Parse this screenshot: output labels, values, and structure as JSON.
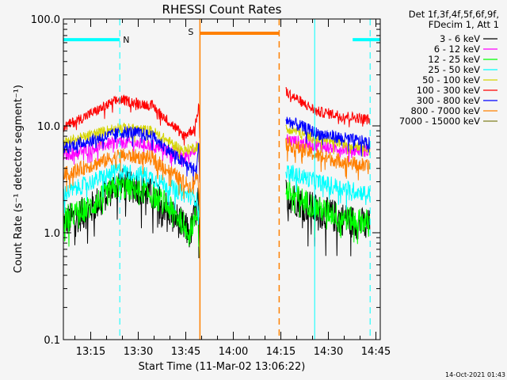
{
  "chart_data": {
    "type": "line",
    "title": "RHESSI Count Rates",
    "xlabel": "Start Time (11-Mar-02 13:06:22)",
    "ylabel": "Count Rate (s⁻¹ detector segment⁻¹)",
    "x_units": "minutes since 13:06:22",
    "xlim": [
      0,
      100
    ],
    "ylim": [
      0.1,
      100
    ],
    "yscale": "log",
    "x_ticks": [
      {
        "t": 8.63,
        "label": "13:15"
      },
      {
        "t": 23.63,
        "label": "13:30"
      },
      {
        "t": 38.63,
        "label": "13:45"
      },
      {
        "t": 53.63,
        "label": "14:00"
      },
      {
        "t": 68.63,
        "label": "14:15"
      },
      {
        "t": 83.63,
        "label": "14:30"
      },
      {
        "t": 98.63,
        "label": "14:45"
      }
    ],
    "y_ticks": [
      {
        "v": 100,
        "label": "100.0"
      },
      {
        "v": 10,
        "label": "10.0"
      },
      {
        "v": 1,
        "label": "1.0"
      },
      {
        "v": 0.1,
        "label": "0.1"
      }
    ],
    "legend": {
      "placement": "right",
      "header": [
        "Det 1f,3f,4f,5f,6f,9f,",
        "FDecim 1, Att 1"
      ]
    },
    "series": [
      {
        "name": "3 - 6 keV",
        "color": "#000000",
        "noise": 0.16,
        "segments": [
          [
            [
              0,
              1.25
            ],
            [
              8,
              1.6
            ],
            [
              17,
              2.9
            ],
            [
              25,
              2.6
            ],
            [
              32,
              1.8
            ],
            [
              40,
              0.97
            ],
            [
              42.5,
              1.9
            ],
            [
              43,
              0.8
            ]
          ],
          [
            [
              70.2,
              2.3
            ],
            [
              80,
              1.6
            ],
            [
              90,
              1.3
            ],
            [
              96.7,
              1.15
            ]
          ]
        ]
      },
      {
        "name": "6 - 12 keV",
        "color": "#ff00ff",
        "noise": 0.06,
        "segments": [
          [
            [
              0,
              5.3
            ],
            [
              17,
              7.1
            ],
            [
              28,
              6.6
            ],
            [
              38,
              5.2
            ],
            [
              42.5,
              6.5
            ],
            [
              43,
              4
            ]
          ],
          [
            [
              70.2,
              7.5
            ],
            [
              80,
              6.5
            ],
            [
              96.7,
              5.8
            ]
          ]
        ]
      },
      {
        "name": "12 - 25 keV",
        "color": "#00ff00",
        "noise": 0.12,
        "segments": [
          [
            [
              0,
              1.36
            ],
            [
              8,
              1.7
            ],
            [
              17,
              2.7
            ],
            [
              25,
              2.5
            ],
            [
              32,
              1.9
            ],
            [
              40,
              1.05
            ],
            [
              42.5,
              1.6
            ],
            [
              43,
              0.5
            ]
          ],
          [
            [
              70.2,
              2.5
            ],
            [
              80,
              1.7
            ],
            [
              90,
              1.35
            ],
            [
              96.7,
              1.25
            ]
          ]
        ]
      },
      {
        "name": "25 - 50 keV",
        "color": "#00ffff",
        "noise": 0.08,
        "segments": [
          [
            [
              0,
              2.3
            ],
            [
              17,
              3.8
            ],
            [
              26,
              3.5
            ],
            [
              38,
              2.3
            ],
            [
              42,
              2.1
            ],
            [
              43,
              1.5
            ]
          ],
          [
            [
              70.2,
              3.8
            ],
            [
              80,
              3.0
            ],
            [
              96.7,
              2.3
            ]
          ]
        ]
      },
      {
        "name": "50 - 100 keV",
        "color": "#d4d400",
        "noise": 0.05,
        "segments": [
          [
            [
              0,
              6.9
            ],
            [
              17,
              9.7
            ],
            [
              28,
              9.0
            ],
            [
              38,
              5.8
            ],
            [
              42.5,
              6.5
            ],
            [
              43,
              4
            ]
          ],
          [
            [
              70.2,
              9.7
            ],
            [
              80,
              7.5
            ],
            [
              96.7,
              6.3
            ]
          ]
        ]
      },
      {
        "name": "100 - 300 keV",
        "color": "#ff0000",
        "noise": 0.05,
        "segments": [
          [
            [
              0,
              9.7
            ],
            [
              17.5,
              17.6
            ],
            [
              28,
              15.5
            ],
            [
              38,
              8.1
            ],
            [
              41.5,
              9.5
            ],
            [
              42.8,
              16
            ],
            [
              43,
              8
            ]
          ],
          [
            [
              70.2,
              20.8
            ],
            [
              80,
              13.6
            ],
            [
              96.7,
              11.4
            ]
          ]
        ]
      },
      {
        "name": "300 - 800 keV",
        "color": "#0000ff",
        "noise": 0.06,
        "segments": [
          [
            [
              0,
              6.3
            ],
            [
              20,
              8.9
            ],
            [
              28,
              8.0
            ],
            [
              38,
              4.5
            ],
            [
              42,
              3.8
            ],
            [
              42.8,
              7
            ],
            [
              43,
              3
            ]
          ],
          [
            [
              70.2,
              11.4
            ],
            [
              80,
              8.5
            ],
            [
              96.7,
              6.9
            ]
          ]
        ]
      },
      {
        "name": "800 - 7000 keV",
        "color": "#ff8000",
        "noise": 0.07,
        "segments": [
          [
            [
              0,
              3.5
            ],
            [
              18,
              5.3
            ],
            [
              28,
              5.0
            ],
            [
              40,
              2.7
            ],
            [
              42.5,
              3.5
            ],
            [
              43,
              2
            ]
          ],
          [
            [
              70.2,
              6.9
            ],
            [
              80,
              5.3
            ],
            [
              96.7,
              4.1
            ]
          ]
        ]
      },
      {
        "name": "7000 - 15000 keV",
        "color": "#808020",
        "noise": 0,
        "segments": []
      }
    ],
    "annotations": {
      "night_label": "N",
      "saa_label": "S",
      "night_color": "#00ffff",
      "saa_color": "#ff8000",
      "night_intervals": [
        [
          0,
          17.8,
          64
        ],
        [
          91.3,
          108.8,
          64
        ]
      ],
      "saa_intervals": [
        [
          43.1,
          68.1,
          73.6
        ]
      ],
      "night_lines": [
        {
          "t": 0,
          "style": "solid"
        },
        {
          "t": 17.8,
          "style": "dashed"
        },
        {
          "t": 79.3,
          "style": "solid"
        },
        {
          "t": 96.8,
          "style": "dashed"
        }
      ],
      "saa_lines": [
        {
          "t": 43.1,
          "style": "solid"
        },
        {
          "t": 68.1,
          "style": "dashed"
        }
      ]
    }
  },
  "footer": {
    "timestamp": "14-Oct-2021 01:43"
  }
}
